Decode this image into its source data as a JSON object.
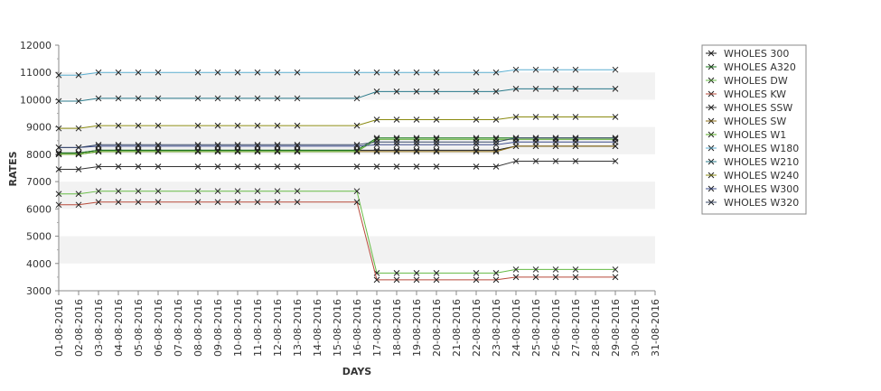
{
  "chart_data": {
    "type": "line",
    "title": "",
    "xlabel": "DAYS",
    "ylabel": "RATES",
    "ylim": [
      3000,
      12000
    ],
    "y_ticks": [
      3000,
      4000,
      5000,
      6000,
      7000,
      8000,
      9000,
      10000,
      11000,
      12000
    ],
    "x_ticks": [
      "01-08-2016",
      "02-08-2016",
      "03-08-2016",
      "04-08-2016",
      "05-08-2016",
      "06-08-2016",
      "07-08-2016",
      "08-08-2016",
      "09-08-2016",
      "10-08-2016",
      "11-08-2016",
      "12-08-2016",
      "13-08-2016",
      "14-08-2016",
      "15-08-2016",
      "16-08-2016",
      "17-08-2016",
      "18-08-2016",
      "19-08-2016",
      "20-08-2016",
      "21-08-2016",
      "22-08-2016",
      "23-08-2016",
      "24-08-2016",
      "25-08-2016",
      "26-08-2016",
      "27-08-2016",
      "28-08-2016",
      "29-08-2016",
      "30-08-2016",
      "31-08-2016"
    ],
    "x_dates": [
      "01-08-2016",
      "02-08-2016",
      "03-08-2016",
      "04-08-2016",
      "05-08-2016",
      "06-08-2016",
      "08-08-2016",
      "09-08-2016",
      "10-08-2016",
      "11-08-2016",
      "12-08-2016",
      "13-08-2016",
      "16-08-2016",
      "17-08-2016",
      "18-08-2016",
      "19-08-2016",
      "20-08-2016",
      "22-08-2016",
      "23-08-2016",
      "24-08-2016",
      "25-08-2016",
      "26-08-2016",
      "27-08-2016",
      "29-08-2016"
    ],
    "grid": "alternating horizontal bands",
    "legend_position": "right",
    "series": [
      {
        "name": "WHOLES 300",
        "color": "#1a1a1a",
        "values": [
          8050,
          8050,
          8150,
          8150,
          8150,
          8150,
          8150,
          8150,
          8150,
          8150,
          8150,
          8150,
          8150,
          8150,
          8150,
          8150,
          8150,
          8150,
          8150,
          8300,
          8300,
          8300,
          8300,
          8300
        ]
      },
      {
        "name": "WHOLES A320",
        "color": "#1a7a1a",
        "values": [
          8050,
          8050,
          8150,
          8150,
          8150,
          8150,
          8150,
          8150,
          8150,
          8150,
          8150,
          8150,
          8150,
          8600,
          8600,
          8600,
          8600,
          8600,
          8600,
          8600,
          8600,
          8600,
          8600,
          8600
        ]
      },
      {
        "name": "WHOLES DW",
        "color": "#66bb44",
        "values": [
          6550,
          6550,
          6650,
          6650,
          6650,
          6650,
          6650,
          6650,
          6650,
          6650,
          6650,
          6650,
          6650,
          3650,
          3650,
          3650,
          3650,
          3650,
          3650,
          3780,
          3780,
          3780,
          3780,
          3780
        ]
      },
      {
        "name": "WHOLES KW",
        "color": "#b84a3a",
        "values": [
          6150,
          6150,
          6250,
          6250,
          6250,
          6250,
          6250,
          6250,
          6250,
          6250,
          6250,
          6250,
          6250,
          3400,
          3400,
          3400,
          3400,
          3400,
          3400,
          3500,
          3500,
          3500,
          3500,
          3500
        ]
      },
      {
        "name": "WHOLES SSW",
        "color": "#333333",
        "values": [
          7450,
          7450,
          7550,
          7550,
          7550,
          7550,
          7550,
          7550,
          7550,
          7550,
          7550,
          7550,
          7550,
          7550,
          7550,
          7550,
          7550,
          7550,
          7550,
          7750,
          7750,
          7750,
          7750,
          7750
        ]
      },
      {
        "name": "WHOLES SW",
        "color": "#8a6a10",
        "values": [
          8000,
          8000,
          8100,
          8100,
          8100,
          8100,
          8100,
          8100,
          8100,
          8100,
          8100,
          8100,
          8100,
          8100,
          8100,
          8100,
          8100,
          8100,
          8100,
          8300,
          8300,
          8300,
          8300,
          8300
        ]
      },
      {
        "name": "WHOLES W1",
        "color": "#55aa22",
        "values": [
          8000,
          8000,
          8100,
          8100,
          8100,
          8100,
          8100,
          8100,
          8100,
          8100,
          8100,
          8100,
          8100,
          8550,
          8550,
          8550,
          8550,
          8550,
          8550,
          8550,
          8550,
          8550,
          8550,
          8550
        ]
      },
      {
        "name": "WHOLES W180",
        "color": "#5aaed0",
        "values": [
          10900,
          10900,
          11000,
          11000,
          11000,
          11000,
          11000,
          11000,
          11000,
          11000,
          11000,
          11000,
          11000,
          11000,
          11000,
          11000,
          11000,
          11000,
          11000,
          11100,
          11100,
          11100,
          11100,
          11100
        ]
      },
      {
        "name": "WHOLES W210",
        "color": "#2a7a8a",
        "values": [
          9950,
          9950,
          10050,
          10050,
          10050,
          10050,
          10050,
          10050,
          10050,
          10050,
          10050,
          10050,
          10050,
          10300,
          10300,
          10300,
          10300,
          10300,
          10300,
          10400,
          10400,
          10400,
          10400,
          10400
        ]
      },
      {
        "name": "WHOLES W240",
        "color": "#8a8a10",
        "values": [
          8950,
          8950,
          9050,
          9050,
          9050,
          9050,
          9050,
          9050,
          9050,
          9050,
          9050,
          9050,
          9050,
          9270,
          9270,
          9270,
          9270,
          9270,
          9270,
          9370,
          9370,
          9370,
          9370,
          9370
        ]
      },
      {
        "name": "WHOLES W300",
        "color": "#3a4a8a",
        "values": [
          8250,
          8250,
          8300,
          8300,
          8300,
          8300,
          8300,
          8300,
          8300,
          8300,
          8300,
          8300,
          8300,
          8350,
          8350,
          8350,
          8350,
          8350,
          8350,
          8450,
          8450,
          8450,
          8450,
          8450
        ]
      },
      {
        "name": "WHOLES W320",
        "color": "#3a4a6a",
        "values": [
          8250,
          8250,
          8350,
          8350,
          8350,
          8350,
          8350,
          8350,
          8350,
          8350,
          8350,
          8350,
          8350,
          8450,
          8450,
          8450,
          8450,
          8450,
          8450,
          8600,
          8600,
          8600,
          8600,
          8600
        ]
      }
    ]
  }
}
